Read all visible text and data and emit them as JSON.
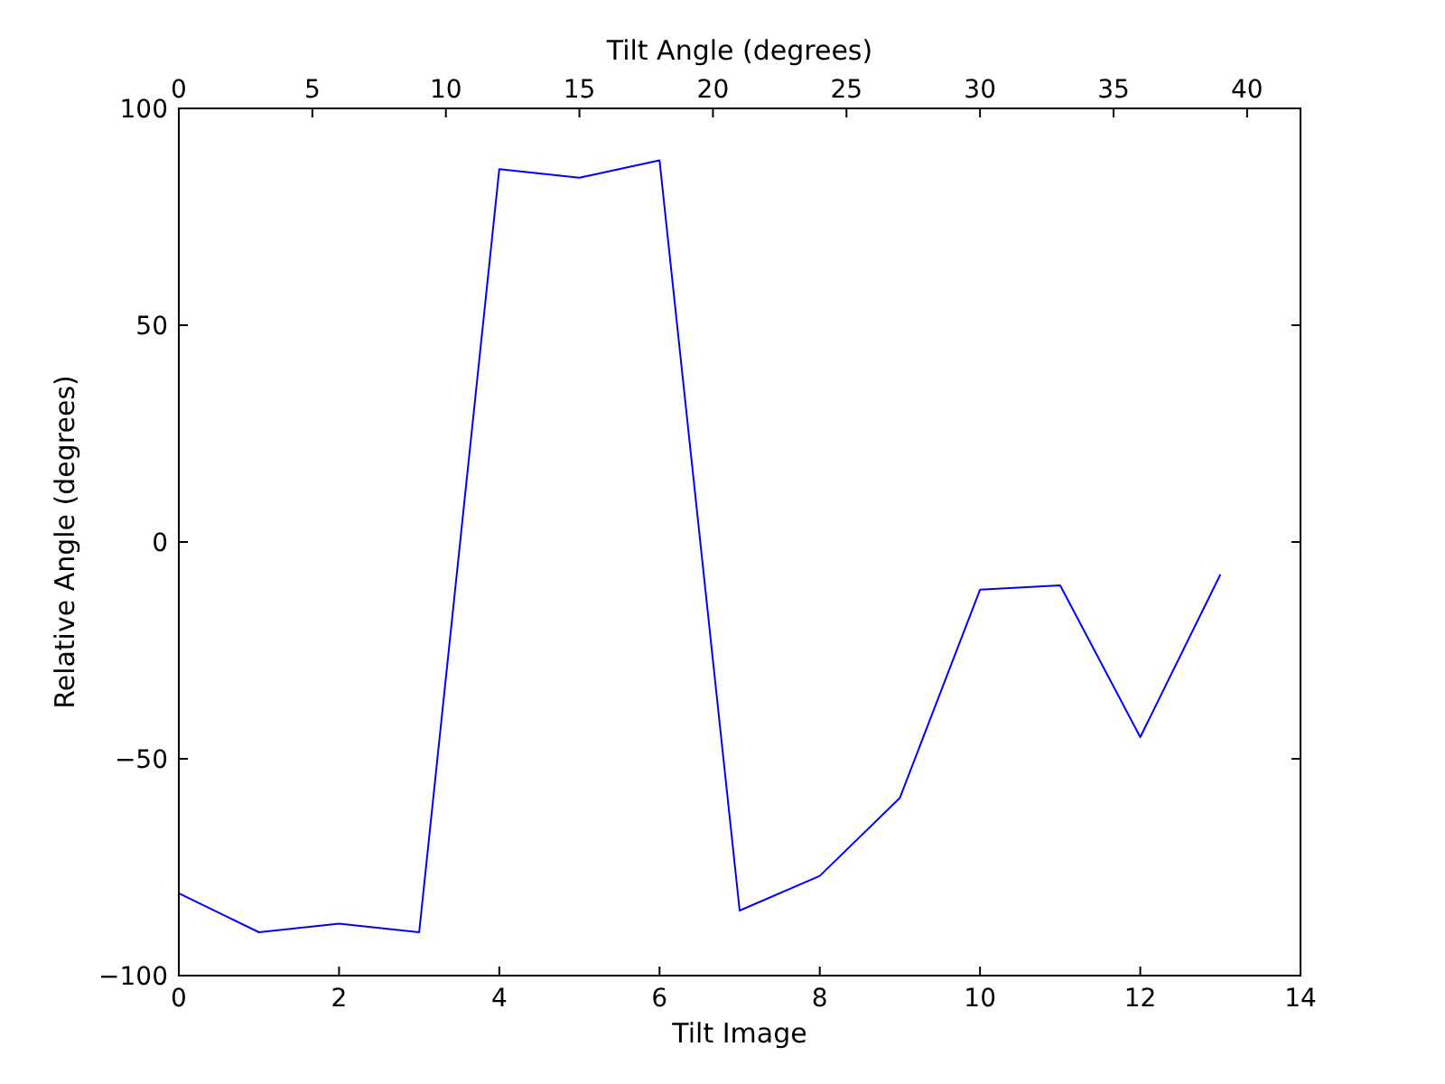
{
  "chart_data": {
    "type": "line",
    "xlabel": "Tilt Image",
    "ylabel": "Relative Angle (degrees)",
    "x2label": "Tilt Angle (degrees)",
    "x": [
      0,
      1,
      2,
      3,
      4,
      5,
      6,
      7,
      8,
      9,
      10,
      11,
      12,
      13
    ],
    "series": [
      {
        "color": "#0000ff",
        "values": [
          -81,
          -90,
          -88,
          -90,
          86,
          84,
          88,
          -85,
          -77,
          -59,
          -11,
          -10,
          -45,
          -7.5
        ]
      }
    ],
    "xlim": [
      0,
      14
    ],
    "xticks": [
      0,
      2,
      4,
      6,
      8,
      10,
      12,
      14
    ],
    "ylim": [
      -100,
      100
    ],
    "yticks": [
      -100,
      -50,
      0,
      50,
      100
    ],
    "x2lim": [
      0,
      42
    ],
    "x2ticks": [
      0,
      5,
      10,
      15,
      20,
      25,
      30,
      35,
      40
    ],
    "grid": false,
    "marker": "none",
    "line_style": "solid"
  }
}
